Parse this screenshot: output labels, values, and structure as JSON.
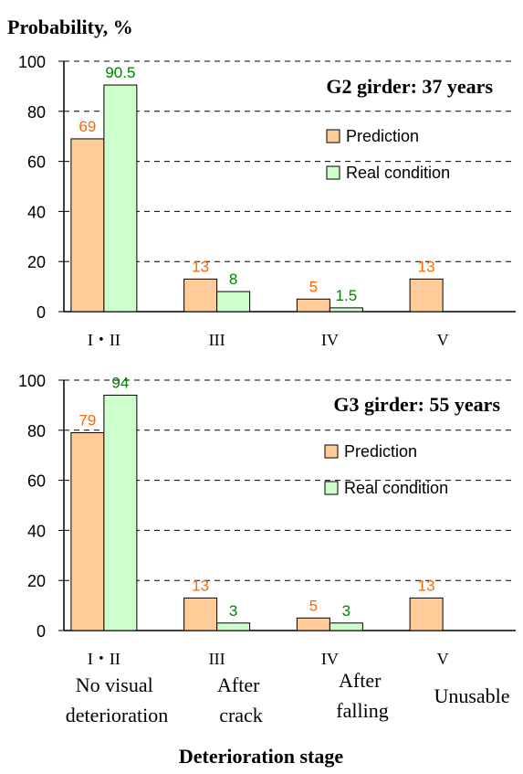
{
  "figure": {
    "ylabel": "Probability, %",
    "xlabel": "Deterioration stage",
    "stage_descriptions": [
      "No visual deterioration",
      "After crack",
      "After falling",
      "Unusable"
    ]
  },
  "colors": {
    "prediction_fill": "#FFCC99",
    "real_fill": "#CCFFCC",
    "prediction_label": "#FF6600",
    "real_label": "#008000",
    "grid": "#000000"
  },
  "chart_data": [
    {
      "type": "bar",
      "title": "G2 girder: 37 years",
      "categories": [
        "I・II",
        "III",
        "IV",
        "V"
      ],
      "ylim": [
        0,
        100
      ],
      "yticks": [
        "0",
        "20",
        "40",
        "60",
        "80",
        "100"
      ],
      "grid": "dashed horizontal",
      "legend_position": "right",
      "series": [
        {
          "name": "Prediction",
          "values": [
            69,
            13,
            5,
            13
          ],
          "labels": [
            "69",
            "13",
            "5",
            "13"
          ]
        },
        {
          "name": "Real condition",
          "values": [
            90.5,
            8,
            1.5,
            0
          ],
          "labels": [
            "90.5",
            "8",
            "1.5",
            ""
          ]
        }
      ]
    },
    {
      "type": "bar",
      "title": "G3 girder: 55 years",
      "categories": [
        "I・II",
        "III",
        "IV",
        "V"
      ],
      "ylim": [
        0,
        100
      ],
      "yticks": [
        "0",
        "20",
        "40",
        "60",
        "80",
        "100"
      ],
      "grid": "dashed horizontal",
      "legend_position": "right",
      "series": [
        {
          "name": "Prediction",
          "values": [
            79,
            13,
            5,
            13
          ],
          "labels": [
            "79",
            "13",
            "5",
            "13"
          ]
        },
        {
          "name": "Real condition",
          "values": [
            94,
            3,
            3,
            0
          ],
          "labels": [
            "94",
            "3",
            "3",
            ""
          ]
        }
      ]
    }
  ]
}
